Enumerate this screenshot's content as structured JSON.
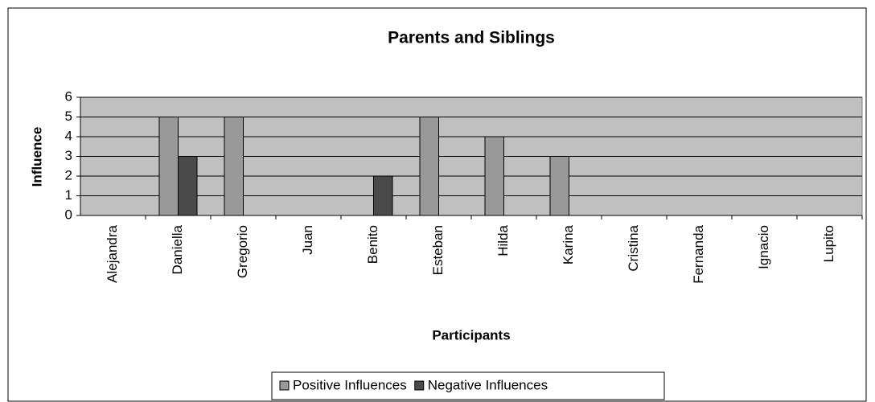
{
  "chart_data": {
    "type": "bar",
    "title": "Parents and Siblings",
    "x_label": "Participants",
    "y_label": "Influence",
    "categories": [
      "Alejandra",
      "Daniella",
      "Gregorio",
      "Juan",
      "Benito",
      "Esteban",
      "Hilda",
      "Karina",
      "Cristina",
      "Fernanda",
      "Ignacio",
      "Lupito"
    ],
    "series": [
      {
        "name": "Positive Influences",
        "color": "#999999",
        "values": [
          0,
          5,
          5,
          0,
          0,
          5,
          4,
          3,
          0,
          0,
          0,
          0
        ]
      },
      {
        "name": "Negative Influences",
        "color": "#4a4a4a",
        "values": [
          0,
          3,
          0,
          0,
          2,
          0,
          0,
          0,
          0,
          0,
          0,
          0
        ]
      }
    ],
    "ylim": [
      0,
      6
    ],
    "yticks": [
      0,
      1,
      2,
      3,
      4,
      5,
      6
    ],
    "grid": true,
    "legend": "bottom",
    "plot_background": "#c0c0c0"
  }
}
